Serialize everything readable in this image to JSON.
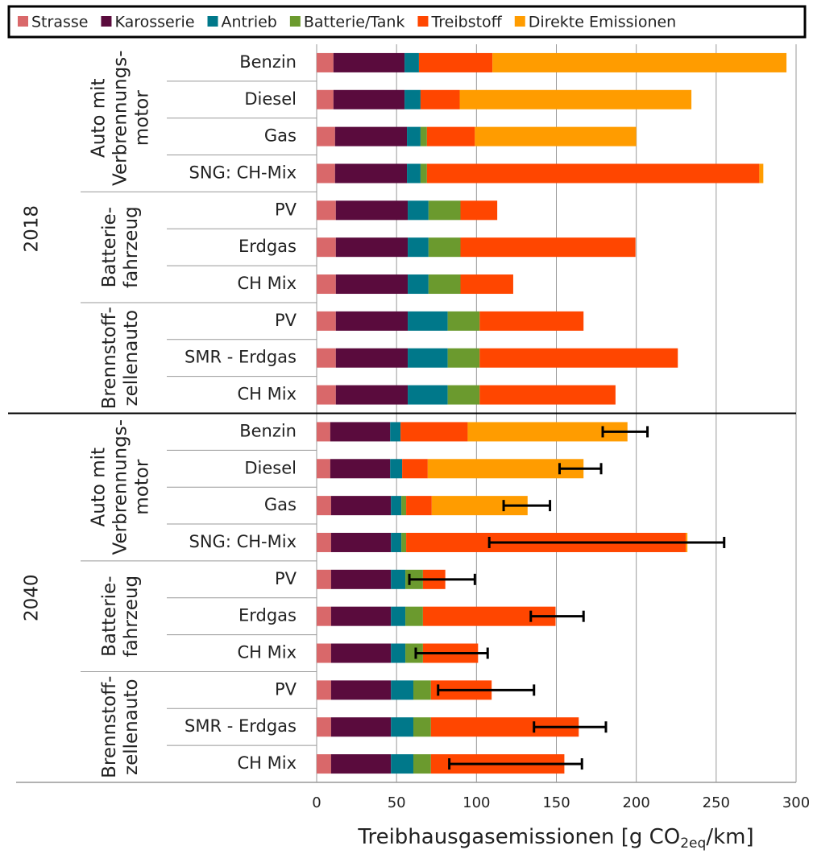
{
  "chart_data": {
    "type": "stacked_barh",
    "x_label": {
      "text": "Treibhausgasemissionen [g CO",
      "sub": "2eq",
      "after": "/km]"
    },
    "groups": [
      {
        "label": "2018",
        "subgroups": [
          {
            "label": [
              "Auto mit",
              "Verbrennungs-",
              "motor"
            ],
            "categories": [
              "Benzin",
              "Diesel",
              "Gas",
              "SNG: CH-Mix"
            ]
          },
          {
            "label": [
              "Batterie-",
              "fahrzeug"
            ],
            "categories": [
              "PV",
              "Erdgas",
              "CH Mix"
            ]
          },
          {
            "label": [
              "Brennstoff-",
              "zellenauto"
            ],
            "categories": [
              "PV",
              "SMR - Erdgas",
              "CH Mix"
            ]
          }
        ]
      },
      {
        "label": "2040",
        "subgroups": [
          {
            "label": [
              "Auto mit",
              "Verbrennungs-",
              "motor"
            ],
            "categories": [
              "Benzin",
              "Diesel",
              "Gas",
              "SNG: CH-Mix"
            ]
          },
          {
            "label": [
              "Batterie-",
              "fahrzeug"
            ],
            "categories": [
              "PV",
              "Erdgas",
              "CH Mix"
            ]
          },
          {
            "label": [
              "Brennstoff-",
              "zellenauto"
            ],
            "categories": [
              "PV",
              "SMR - Erdgas",
              "CH Mix"
            ]
          }
        ]
      }
    ],
    "series": [
      {
        "name": "Strasse",
        "color": "#d9686a",
        "values": [
          10.5,
          10.5,
          11.5,
          11.5,
          12,
          12,
          12,
          12,
          12,
          12,
          8.5,
          8.5,
          9,
          9,
          9,
          9,
          9,
          9,
          9,
          9
        ]
      },
      {
        "name": "Karosserie",
        "color": "#5a0b3d",
        "values": [
          44.5,
          44.5,
          45,
          45,
          45,
          45,
          45,
          45,
          45,
          45,
          37.5,
          37.5,
          37.5,
          37.5,
          37.5,
          37.5,
          37.5,
          37.5,
          37.5,
          37.5
        ]
      },
      {
        "name": "Antrieb",
        "color": "#00788a",
        "values": [
          9,
          10,
          8.5,
          8.5,
          13,
          13,
          13,
          25,
          25,
          25,
          6.5,
          7.5,
          6.5,
          6.5,
          9,
          9,
          9,
          14,
          14,
          14
        ]
      },
      {
        "name": "Batterie/Tank",
        "color": "#6b9a2e",
        "values": [
          0,
          0,
          4,
          4,
          20,
          20,
          20,
          20,
          20,
          20,
          0,
          0,
          3,
          3,
          11,
          11,
          11,
          11,
          11,
          11
        ]
      },
      {
        "name": "Treibstoff",
        "color": "#ff4600",
        "values": [
          46,
          24.5,
          30,
          208,
          23,
          109.5,
          33,
          65,
          124,
          85,
          42,
          16,
          16,
          175,
          14,
          83,
          34.5,
          38,
          92.5,
          83.5
        ]
      },
      {
        "name": "Direkte Emissionen",
        "color": "#ff9c00",
        "values": [
          184,
          145,
          101,
          2.5,
          0,
          0,
          0,
          0,
          0,
          0,
          100,
          97.5,
          60,
          1,
          0,
          0,
          0,
          0,
          0,
          0
        ]
      }
    ],
    "errors": [
      null,
      null,
      null,
      null,
      null,
      null,
      null,
      null,
      null,
      null,
      [
        179,
        207
      ],
      [
        152,
        178
      ],
      [
        117,
        146
      ],
      [
        108,
        255
      ],
      [
        58,
        99
      ],
      [
        134,
        167
      ],
      [
        62,
        107
      ],
      [
        76,
        136
      ],
      [
        136,
        181
      ],
      [
        83,
        166
      ]
    ],
    "xlim": [
      0,
      300
    ],
    "xticks": [
      0,
      50,
      100,
      150,
      200,
      250,
      300
    ],
    "grid": true
  }
}
